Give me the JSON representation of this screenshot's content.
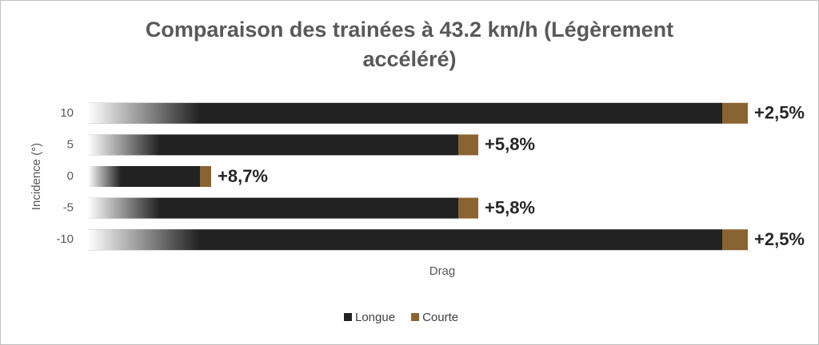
{
  "chart_data": {
    "type": "stacked-barh",
    "title": "Comparaison des trainées à 43.2 km/h (Légèrement",
    "title_line2": "accéléré)",
    "y_label": "Incidence (°)",
    "x_label": "Drag",
    "categories": [
      "10",
      "5",
      "0",
      "-5",
      "-10"
    ],
    "series": [
      {
        "name": "Longue",
        "color": "#222222",
        "values": [
          79.3,
          46.3,
          14,
          46.3,
          79.3
        ]
      },
      {
        "name": "Courte",
        "color": "#8a6332",
        "values": [
          3.2,
          2.5,
          1.4,
          2.5,
          3.2
        ]
      }
    ],
    "annotations": [
      "+2,5%",
      "+5,8%",
      "+8,7%",
      "+5,8%",
      "+2,5%"
    ],
    "xlim": [
      0,
      90
    ]
  }
}
